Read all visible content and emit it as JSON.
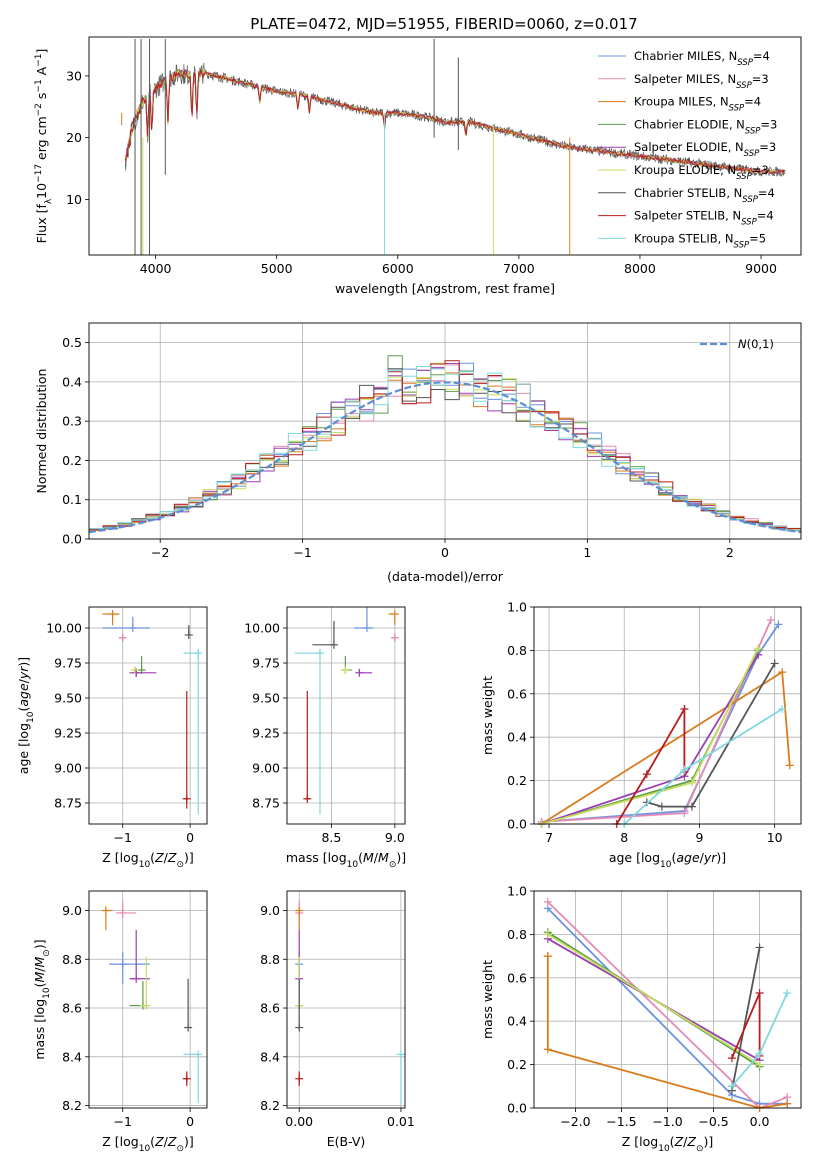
{
  "figure": {
    "title": "PLATE=0472, MJD=51955, FIBERID=0060, z=0.017"
  },
  "series_style": [
    {
      "name": "Chabrier MILES, N$_{SSP}$=4",
      "legend": "Chabrier MILES, N",
      "sub": "SSP",
      "tail": "=4",
      "color": "#6b93de"
    },
    {
      "name": "Salpeter MILES, N$_{SSP}$=3",
      "legend": "Salpeter MILES, N",
      "sub": "SSP",
      "tail": "=3",
      "color": "#e58ab4"
    },
    {
      "name": "Kroupa MILES, N$_{SSP}$=4",
      "legend": "Kroupa MILES, N",
      "sub": "SSP",
      "tail": "=4",
      "color": "#d97c1e"
    },
    {
      "name": "Chabrier ELODIE, N$_{SSP}$=3",
      "legend": "Chabrier ELODIE, N",
      "sub": "SSP",
      "tail": "=3",
      "color": "#5e9e4a"
    },
    {
      "name": "Salpeter ELODIE, N$_{SSP}$=3",
      "legend": "Salpeter ELODIE, N",
      "sub": "SSP",
      "tail": "=3",
      "color": "#9a3fb1"
    },
    {
      "name": "Kroupa ELODIE, N$_{SSP}$=3",
      "legend": "Kroupa ELODIE, N",
      "sub": "SSP",
      "tail": "=3",
      "color": "#c5dd62"
    },
    {
      "name": "Chabrier STELIB, N$_{SSP}$=4",
      "legend": "Chabrier STELIB, N",
      "sub": "SSP",
      "tail": "=4",
      "color": "#555555"
    },
    {
      "name": "Salpeter STELIB, N$_{SSP}$=4",
      "legend": "Salpeter STELIB, N",
      "sub": "SSP",
      "tail": "=4",
      "color": "#b81c1c"
    },
    {
      "name": "Kroupa STELIB, N$_{SSP}$=5",
      "legend": "Kroupa STELIB, N",
      "sub": "SSP",
      "tail": "=5",
      "color": "#7fd8de"
    }
  ],
  "chart_data": [
    {
      "id": "spectrum",
      "type": "line",
      "title": "PLATE=0472, MJD=51955, FIBERID=0060, z=0.017",
      "xlabel": "wavelength [Angstrom, rest frame]",
      "ylabel": "Flux [f_λ 10^-17 erg cm^-2 s^-1 A^-1]",
      "ylabel_parts": {
        "a": "Flux [f",
        "b": "λ",
        "c": "10",
        "d": "−17",
        "e": " erg cm",
        "f": "−2",
        "g": " s",
        "h": "−1",
        "i": " A",
        "j": "−1",
        "k": "]"
      },
      "xlim": [
        3450,
        9330
      ],
      "ylim": [
        1,
        36.3
      ],
      "xticks": [
        4000,
        5000,
        6000,
        7000,
        8000,
        9000
      ],
      "yticks": [
        10,
        20,
        30
      ],
      "grid": false,
      "legend_position": "upper right",
      "data_envelope": {
        "x": [
          3750,
          3800,
          3850,
          3900,
          3950,
          4000,
          4100,
          4200,
          4300,
          4400,
          4500,
          4600,
          4800,
          5000,
          5200,
          5400,
          5600,
          5800,
          6000,
          6200,
          6400,
          6600,
          6800,
          7000,
          7200,
          7400,
          7600,
          7800,
          8000,
          8200,
          8400,
          8600,
          8800,
          9000,
          9200
        ],
        "y": [
          16,
          21,
          24,
          26,
          27,
          28,
          29.5,
          30.5,
          30,
          30.5,
          30,
          29.5,
          28.5,
          27.5,
          27,
          26,
          25,
          24,
          24,
          23.5,
          22.5,
          22.5,
          21.5,
          20.5,
          19.5,
          18.5,
          18,
          17.5,
          17,
          16.5,
          16,
          15.5,
          15,
          14.5,
          14.5
        ]
      }
    },
    {
      "id": "residuals",
      "type": "line",
      "xlabel": "(data-model)/error",
      "ylabel": "Normed distribution",
      "xlim": [
        -2.5,
        2.5
      ],
      "ylim": [
        0,
        0.55
      ],
      "xticks": [
        -2,
        -1,
        0,
        1,
        2
      ],
      "yticks": [
        0.0,
        0.1,
        0.2,
        0.3,
        0.4,
        0.5
      ],
      "grid": true,
      "legend": [
        {
          "label": "N(0,1)",
          "style": "dashed",
          "color": "#5b8ed6"
        }
      ],
      "legend_position": "upper right",
      "normal_curve": {
        "mean": 0,
        "std": 1
      },
      "histogram_bin_width": 0.1
    },
    {
      "id": "age-vs-Z",
      "type": "scatter",
      "xlabel": "Z [log10(Z/Z⊙)]",
      "ylabel": "age [log10(age/yr)]",
      "xlim": [
        -1.5,
        0.25
      ],
      "ylim": [
        8.6,
        10.15
      ],
      "xticks": [
        -1,
        0
      ],
      "yticks": [
        8.75,
        9.0,
        9.25,
        9.5,
        9.75,
        10.0
      ],
      "grid": true,
      "points": [
        {
          "series": 0,
          "x": -0.85,
          "y": 10.0,
          "xerr": [
            0.45,
            0.25
          ],
          "yerr": [
            0.0,
            0.08
          ]
        },
        {
          "series": 1,
          "x": -1.0,
          "y": 9.93,
          "xerr": [
            0.05,
            0.05
          ],
          "yerr": [
            0.03,
            0.03
          ]
        },
        {
          "series": 2,
          "x": -1.15,
          "y": 10.1,
          "xerr": [
            0.15,
            0.1
          ],
          "yerr": [
            0.08,
            0.0
          ]
        },
        {
          "series": 3,
          "x": -0.72,
          "y": 9.7,
          "xerr": [
            0.05,
            0.05
          ],
          "yerr": [
            0.0,
            0.1
          ]
        },
        {
          "series": 4,
          "x": -0.8,
          "y": 9.68,
          "xerr": [
            0.1,
            0.3
          ],
          "yerr": [
            0.03,
            0.03
          ]
        },
        {
          "series": 5,
          "x": -0.82,
          "y": 9.7,
          "xerr": [
            0.02,
            0.02
          ],
          "yerr": [
            0.02,
            0.02
          ]
        },
        {
          "series": 6,
          "x": -0.02,
          "y": 9.95,
          "xerr": [
            0.0,
            0.0
          ],
          "yerr": [
            0.0,
            0.07
          ]
        },
        {
          "series": 7,
          "x": -0.05,
          "y": 8.78,
          "xerr": [
            0.05,
            0.02
          ],
          "yerr": [
            0.07,
            0.77
          ]
        },
        {
          "series": 8,
          "x": 0.12,
          "y": 9.82,
          "xerr": [
            0.22,
            0.0
          ],
          "yerr": [
            1.15,
            0.03
          ]
        }
      ]
    },
    {
      "id": "age-vs-mass",
      "type": "scatter",
      "xlabel": "mass [log10(M/M⊙)]",
      "ylabel": "",
      "xlim": [
        8.15,
        9.08
      ],
      "ylim": [
        8.6,
        10.15
      ],
      "xticks": [
        8.5,
        9.0
      ],
      "yticks": [
        8.75,
        9.0,
        9.25,
        9.5,
        9.75,
        10.0
      ],
      "grid": true,
      "points": [
        {
          "series": 0,
          "x": 8.78,
          "y": 10.0,
          "xerr": [
            0.1,
            0.05
          ],
          "yerr": [
            0.0,
            0.15
          ]
        },
        {
          "series": 1,
          "x": 9.0,
          "y": 9.93,
          "xerr": [
            0.02,
            0.02
          ],
          "yerr": [
            0.03,
            0.03
          ]
        },
        {
          "series": 2,
          "x": 9.0,
          "y": 10.1,
          "xerr": [
            0.05,
            0.0
          ],
          "yerr": [
            0.08,
            0.0
          ]
        },
        {
          "series": 3,
          "x": 8.61,
          "y": 9.7,
          "xerr": [
            0.0,
            0.05
          ],
          "yerr": [
            0.0,
            0.1
          ]
        },
        {
          "series": 4,
          "x": 8.72,
          "y": 9.68,
          "xerr": [
            0.0,
            0.1
          ],
          "yerr": [
            0.0,
            0.02
          ]
        },
        {
          "series": 5,
          "x": 8.61,
          "y": 9.7,
          "xerr": [
            0.02,
            0.02
          ],
          "yerr": [
            0.02,
            0.02
          ]
        },
        {
          "series": 6,
          "x": 8.52,
          "y": 9.88,
          "xerr": [
            0.17,
            0.0
          ],
          "yerr": [
            0.0,
            0.17
          ]
        },
        {
          "series": 7,
          "x": 8.31,
          "y": 8.78,
          "xerr": [
            0.02,
            0.02
          ],
          "yerr": [
            0.0,
            0.77
          ]
        },
        {
          "series": 8,
          "x": 8.41,
          "y": 9.82,
          "xerr": [
            0.2,
            0.0
          ],
          "yerr": [
            1.15,
            0.03
          ]
        }
      ]
    },
    {
      "id": "weight-vs-age",
      "type": "line",
      "xlabel": "age [log10(age/yr)]",
      "ylabel": "mass weight",
      "xlim": [
        6.8,
        10.35
      ],
      "ylim": [
        0.0,
        1.0
      ],
      "xticks": [
        7,
        8,
        9,
        10
      ],
      "yticks": [
        0.0,
        0.2,
        0.4,
        0.6,
        0.8,
        1.0
      ],
      "grid": true,
      "series": [
        {
          "series": 0,
          "x": [
            6.9,
            8.8,
            9.78,
            10.05
          ],
          "y": [
            0.01,
            0.06,
            0.78,
            0.92
          ]
        },
        {
          "series": 1,
          "x": [
            6.9,
            8.8,
            9.95
          ],
          "y": [
            0.01,
            0.05,
            0.94
          ]
        },
        {
          "series": 2,
          "x": [
            6.9,
            10.1,
            10.2
          ],
          "y": [
            0.0,
            0.7,
            0.27
          ]
        },
        {
          "series": 3,
          "x": [
            6.9,
            8.9,
            9.78
          ],
          "y": [
            0.0,
            0.2,
            0.8
          ]
        },
        {
          "series": 4,
          "x": [
            6.9,
            8.8,
            9.78
          ],
          "y": [
            0.0,
            0.22,
            0.78
          ]
        },
        {
          "series": 5,
          "x": [
            6.9,
            8.9,
            9.78
          ],
          "y": [
            0.0,
            0.19,
            0.81
          ]
        },
        {
          "series": 6,
          "x": [
            8.3,
            8.5,
            8.9,
            10.0
          ],
          "y": [
            0.1,
            0.08,
            0.08,
            0.74
          ]
        },
        {
          "series": 7,
          "x": [
            7.9,
            8.3,
            8.8,
            8.8
          ],
          "y": [
            0.0,
            0.23,
            0.53,
            0.24
          ]
        },
        {
          "series": 8,
          "x": [
            8.0,
            8.8,
            10.1
          ],
          "y": [
            0.0,
            0.25,
            0.53
          ]
        }
      ]
    },
    {
      "id": "mass-vs-Z",
      "type": "scatter",
      "xlabel": "Z [log10(Z/Z⊙)]",
      "ylabel": "mass [log10(M/M⊙)]",
      "xlim": [
        -1.5,
        0.25
      ],
      "ylim": [
        8.19,
        9.08
      ],
      "xticks": [
        -1,
        0
      ],
      "yticks": [
        8.2,
        8.4,
        8.6,
        8.8,
        9.0
      ],
      "grid": true,
      "points": [
        {
          "series": 0,
          "x": -1.0,
          "y": 8.78,
          "xerr": [
            0.2,
            0.4
          ],
          "yerr": [
            0.08,
            0.05
          ]
        },
        {
          "series": 1,
          "x": -1.0,
          "y": 8.99,
          "xerr": [
            0.1,
            0.2
          ],
          "yerr": [
            0.02,
            0.05
          ]
        },
        {
          "series": 2,
          "x": -1.25,
          "y": 9.0,
          "xerr": [
            0.0,
            0.1
          ],
          "yerr": [
            0.08,
            0.0
          ]
        },
        {
          "series": 3,
          "x": -0.7,
          "y": 8.61,
          "xerr": [
            0.2,
            0.0
          ],
          "yerr": [
            0.0,
            0.1
          ]
        },
        {
          "series": 4,
          "x": -0.8,
          "y": 8.72,
          "xerr": [
            0.1,
            0.2
          ],
          "yerr": [
            0.0,
            0.2
          ]
        },
        {
          "series": 5,
          "x": -0.65,
          "y": 8.61,
          "xerr": [
            0.1,
            0.05
          ],
          "yerr": [
            0.0,
            0.2
          ]
        },
        {
          "series": 6,
          "x": -0.03,
          "y": 8.52,
          "xerr": [
            0.0,
            0.0
          ],
          "yerr": [
            0.0,
            0.2
          ]
        },
        {
          "series": 7,
          "x": -0.05,
          "y": 8.31,
          "xerr": [
            0.05,
            0.02
          ],
          "yerr": [
            0.03,
            0.03
          ]
        },
        {
          "series": 8,
          "x": 0.12,
          "y": 8.41,
          "xerr": [
            0.22,
            0.0
          ],
          "yerr": [
            0.2,
            0.0
          ]
        }
      ]
    },
    {
      "id": "mass-vs-EBV",
      "type": "scatter",
      "xlabel": "E(B-V)",
      "ylabel": "",
      "xlim": [
        -0.0012,
        0.0104
      ],
      "ylim": [
        8.19,
        9.08
      ],
      "xticks": [
        0.0,
        0.01
      ],
      "xtick_labels": [
        "0.00",
        "0.01"
      ],
      "yticks": [
        8.2,
        8.4,
        8.6,
        8.8,
        9.0
      ],
      "grid": true,
      "points": [
        {
          "series": 0,
          "x": 0.0,
          "y": 8.78,
          "yerr": [
            0.08,
            0.05
          ]
        },
        {
          "series": 1,
          "x": 0.0,
          "y": 8.99,
          "yerr": [
            0.02,
            0.05
          ]
        },
        {
          "series": 2,
          "x": 0.0,
          "y": 9.0,
          "yerr": [
            0.08,
            0.0
          ]
        },
        {
          "series": 3,
          "x": 0.0,
          "y": 8.61,
          "yerr": [
            0.0,
            0.1
          ]
        },
        {
          "series": 4,
          "x": 0.0,
          "y": 8.72,
          "yerr": [
            0.0,
            0.2
          ]
        },
        {
          "series": 5,
          "x": 0.0,
          "y": 8.61,
          "yerr": [
            0.0,
            0.2
          ]
        },
        {
          "series": 6,
          "x": 0.0,
          "y": 8.52,
          "yerr": [
            0.0,
            0.2
          ]
        },
        {
          "series": 7,
          "x": 0.0,
          "y": 8.31,
          "yerr": [
            0.03,
            0.03
          ]
        },
        {
          "series": 8,
          "x": 0.01,
          "y": 8.41,
          "yerr": [
            0.2,
            0.0
          ]
        }
      ]
    },
    {
      "id": "weight-vs-Z",
      "type": "line",
      "xlabel": "Z [log10(Z/Z⊙)]",
      "ylabel": "mass weight",
      "xlim": [
        -2.45,
        0.45
      ],
      "ylim": [
        0.0,
        1.0
      ],
      "xticks": [
        -2.0,
        -1.5,
        -1.0,
        -0.5,
        0.0
      ],
      "xtick_labels": [
        "−2.0",
        "−1.5",
        "−1.0",
        "−0.5",
        "0.0"
      ],
      "yticks": [
        0.0,
        0.2,
        0.4,
        0.6,
        0.8,
        1.0
      ],
      "grid": true,
      "series": [
        {
          "series": 0,
          "x": [
            -2.3,
            -0.3,
            0.0,
            0.3
          ],
          "y": [
            0.92,
            0.06,
            0.02,
            0.02
          ]
        },
        {
          "series": 1,
          "x": [
            -2.3,
            0.0,
            0.3
          ],
          "y": [
            0.95,
            0.0,
            0.05
          ]
        },
        {
          "series": 2,
          "x": [
            -2.3,
            -2.3,
            -2.3,
            0.0,
            0.3
          ],
          "y": [
            0.7,
            0.7,
            0.27,
            0.0,
            0.02
          ]
        },
        {
          "series": 3,
          "x": [
            -2.3,
            0.0
          ],
          "y": [
            0.81,
            0.19
          ]
        },
        {
          "series": 4,
          "x": [
            -2.3,
            0.0
          ],
          "y": [
            0.78,
            0.22
          ]
        },
        {
          "series": 5,
          "x": [
            -2.3,
            0.0
          ],
          "y": [
            0.8,
            0.2
          ]
        },
        {
          "series": 6,
          "x": [
            -0.3,
            -0.3,
            0.0
          ],
          "y": [
            0.1,
            0.08,
            0.74
          ]
        },
        {
          "series": 7,
          "x": [
            -0.3,
            0.0,
            0.0
          ],
          "y": [
            0.23,
            0.53,
            0.24
          ]
        },
        {
          "series": 8,
          "x": [
            -0.3,
            0.0,
            0.3
          ],
          "y": [
            0.1,
            0.25,
            0.53
          ]
        }
      ]
    }
  ]
}
